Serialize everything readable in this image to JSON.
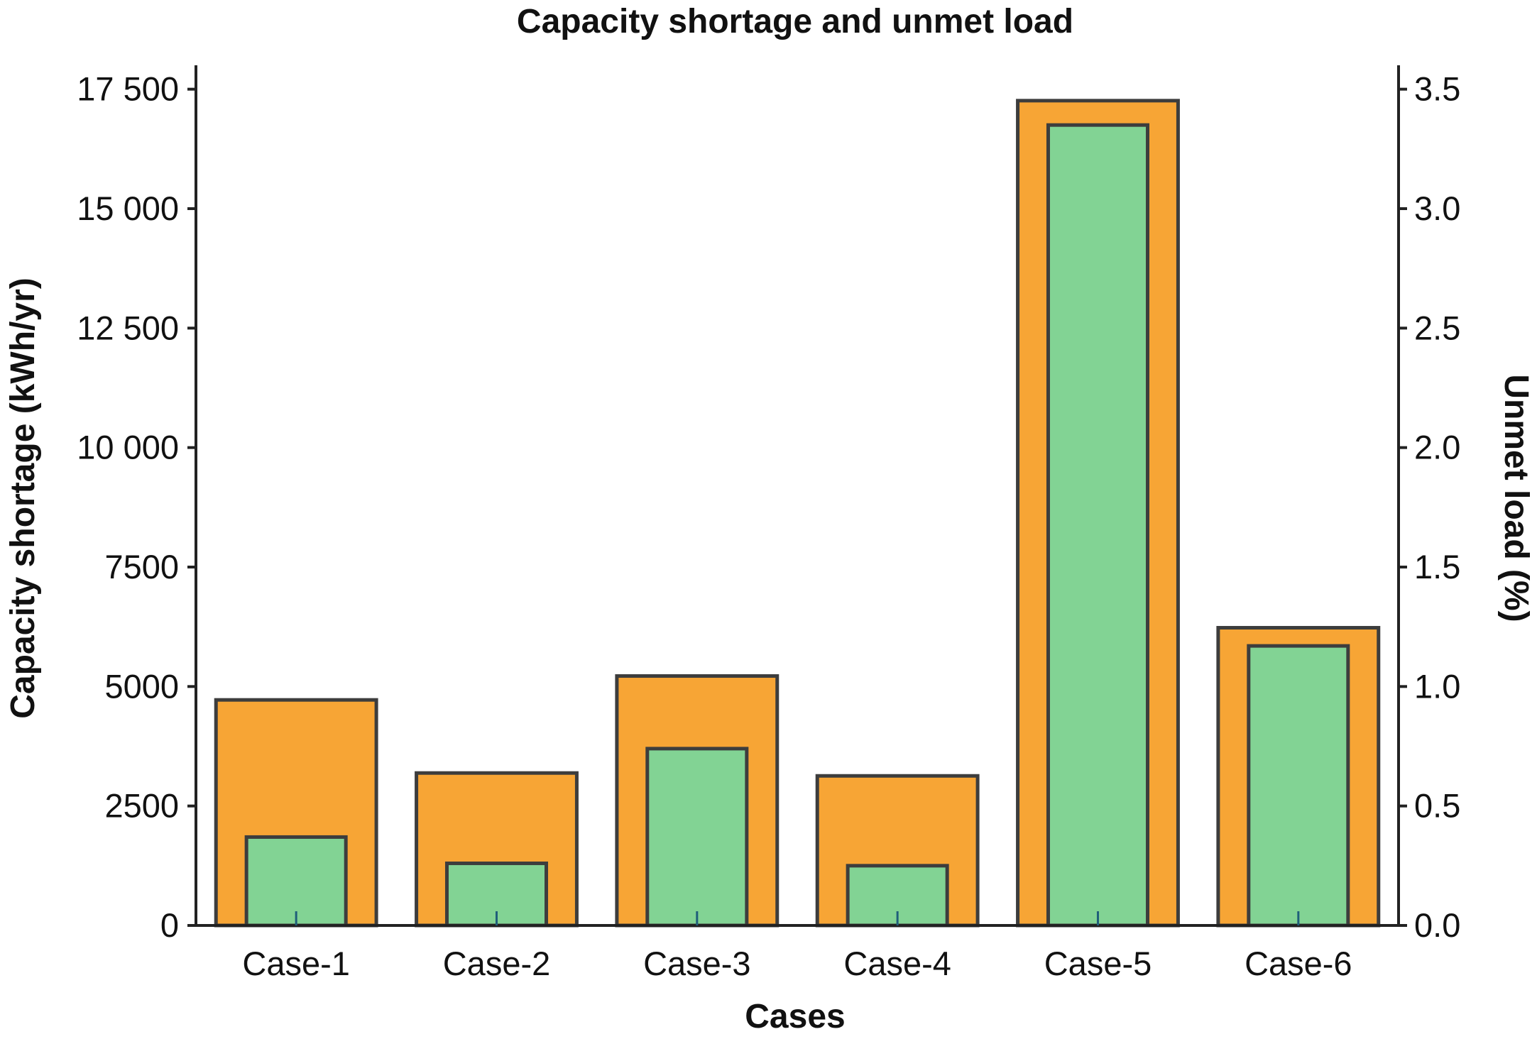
{
  "chart_data": {
    "type": "bar",
    "title": "Capacity shortage and unmet load",
    "xlabel": "Cases",
    "ylabel": "Capacity shortage (kWh/yr)",
    "y2label": "Unmet load (%)",
    "categories": [
      "Case-1",
      "Case-2",
      "Case-3",
      "Case-4",
      "Case-5",
      "Case-6"
    ],
    "series": [
      {
        "values": [
          4720,
          3190,
          5220,
          3130,
          17260,
          6230
        ],
        "axis": "left",
        "color": "#F7A535"
      },
      {
        "values": [
          0.37,
          0.26,
          0.74,
          0.25,
          3.35,
          1.17
        ],
        "axis": "right",
        "color": "#82D394"
      }
    ],
    "ylim": [
      0,
      18000
    ],
    "y2lim": [
      0,
      3.6
    ],
    "yticks": [
      0,
      2500,
      5000,
      7500,
      10000,
      12500,
      15000,
      17500
    ],
    "ytick_labels": [
      "0",
      "2500",
      "5000",
      "7500",
      "10 000",
      "12 500",
      "15 000",
      "17 500"
    ],
    "y2ticks": [
      0,
      0.5,
      1.0,
      1.5,
      2.0,
      2.5,
      3.0,
      3.5
    ],
    "y2tick_labels": [
      "0.0",
      "0.5",
      "1.0",
      "1.5",
      "2.0",
      "2.5",
      "3.0",
      "3.5"
    ],
    "grid": false,
    "legend": "none"
  }
}
